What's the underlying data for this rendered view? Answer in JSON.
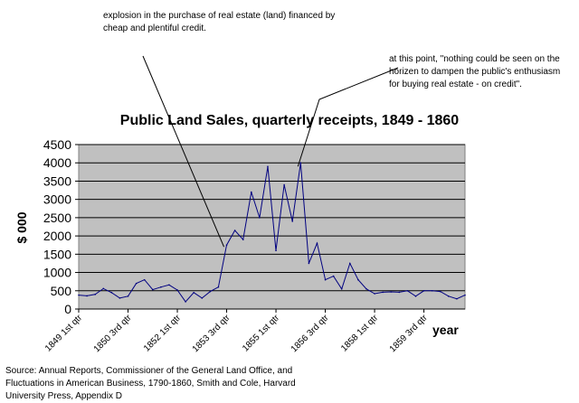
{
  "annotations": {
    "top": "explosion in the purchase of real estate (land) financed by\ncheap and plentiful credit.",
    "right": "at this point, \"nothing could be seen on the\nhorizen to dampen the public's enthusiasm\nfor buying real estate - on credit\"."
  },
  "source": "Source: Annual Reports, Commissioner of the General Land Office, and\nFluctuations in American Business, 1790-1860, Smith and Cole, Harvard\nUniversity Press, Appendix D",
  "chart_data": {
    "type": "line",
    "title": "Public Land Sales, quarterly receipts, 1849 - 1860",
    "xlabel": "year",
    "ylabel": "$ 000",
    "ylim": [
      0,
      4500
    ],
    "yticks": [
      0,
      500,
      1000,
      1500,
      2000,
      2500,
      3000,
      3500,
      4000,
      4500
    ],
    "grid": true,
    "plot_background": "#c0c0c0",
    "line_color": "#000080",
    "xtick_labels": [
      {
        "index": 0,
        "label": "1849 1st qtr"
      },
      {
        "index": 6,
        "label": "1850 3rd qtr"
      },
      {
        "index": 12,
        "label": "1852 1st qtr"
      },
      {
        "index": 18,
        "label": "1853 3rd qtr"
      },
      {
        "index": 24,
        "label": "1855 1st qtr"
      },
      {
        "index": 30,
        "label": "1856 3rd qtr"
      },
      {
        "index": 36,
        "label": "1858 1st qtr"
      },
      {
        "index": 42,
        "label": "1859 3rd qtr"
      }
    ],
    "series": [
      {
        "values": [
          380,
          360,
          400,
          560,
          450,
          300,
          350,
          700,
          800,
          530,
          600,
          660,
          520,
          200,
          450,
          300,
          480,
          600,
          1750,
          2150,
          1900,
          3200,
          2500,
          3900,
          1600,
          3400,
          2400,
          4000,
          1250,
          1800,
          800,
          900,
          550,
          1250,
          800,
          550,
          420,
          460,
          470,
          460,
          500,
          350,
          500,
          500,
          480,
          350,
          280,
          380
        ]
      }
    ]
  }
}
